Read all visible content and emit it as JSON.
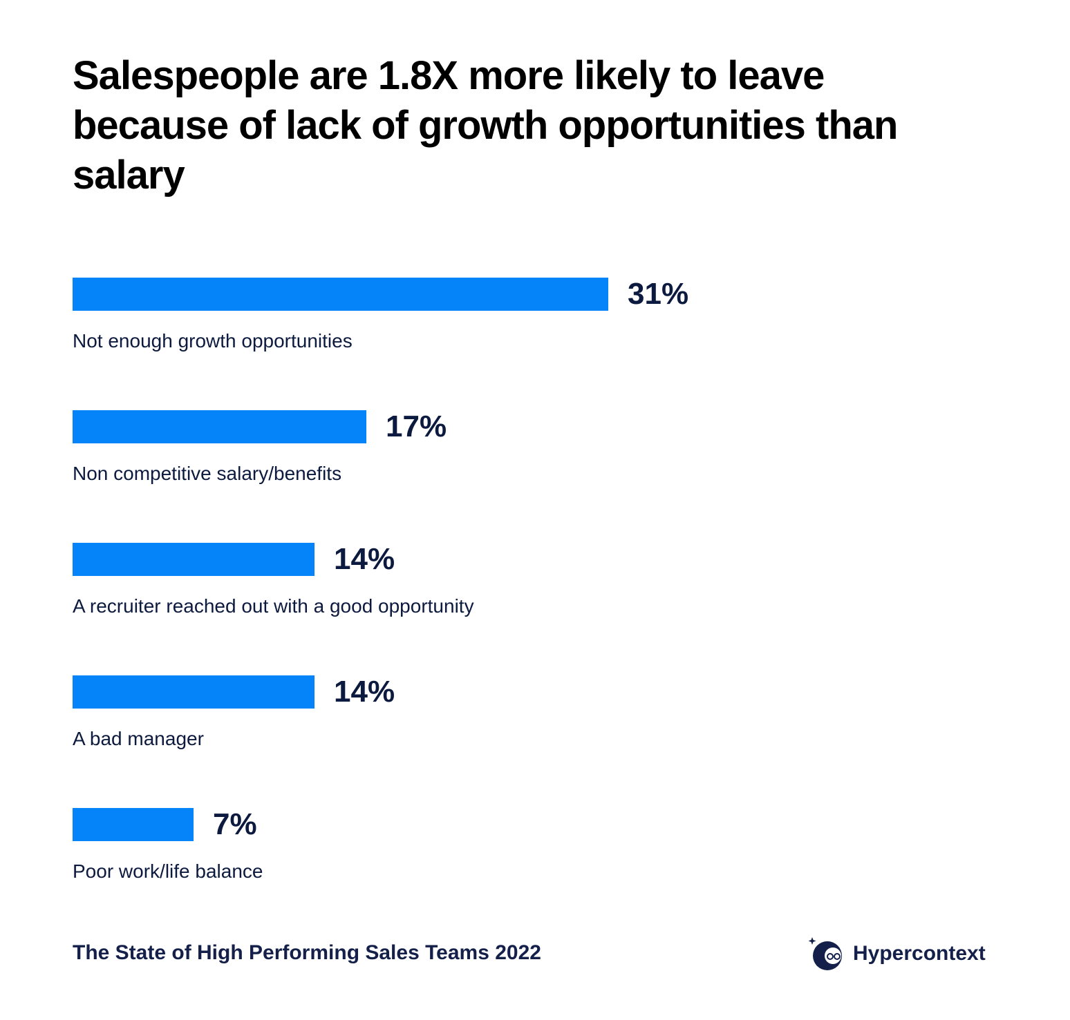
{
  "chart_data": {
    "type": "bar",
    "orientation": "horizontal",
    "title": "Salespeople are 1.8X more likely to leave because of lack of growth opportunities than salary",
    "categories": [
      "Not enough growth opportunities",
      "Non competitive salary/benefits",
      "A recruiter reached out with a good opportunity",
      "A bad manager",
      "Poor work/life balance"
    ],
    "values": [
      31,
      17,
      14,
      14,
      7
    ],
    "value_labels": [
      "31%",
      "17%",
      "14%",
      "14%",
      "7%"
    ],
    "color": "#0583f8",
    "source": "The State of High Performing Sales Teams 2022",
    "brand": "Hypercontext"
  }
}
